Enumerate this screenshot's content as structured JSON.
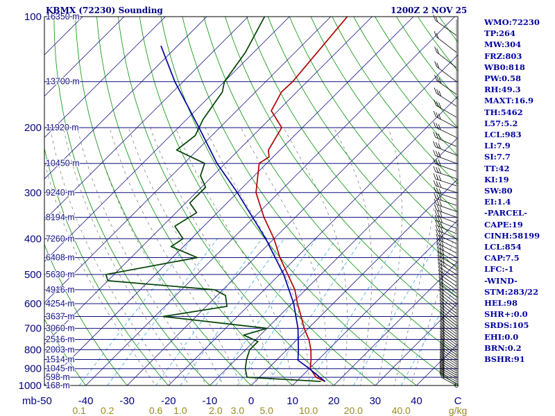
{
  "header": {
    "station": "KBMX (72230) Sounding",
    "time": "1200Z  2 NOV 25"
  },
  "indices": [
    "WMO:72230",
    "TP:264",
    "MW:304",
    "FRZ:803",
    "WB0:818",
    "PW:0.58",
    "RH:49.3",
    "MAXT:16.9",
    "TH:5462",
    "L57:5.2",
    "LCL:983",
    "LI:7.9",
    "SI:7.7",
    "TT:42",
    "KI:19",
    "SW:80",
    "EI:1.4",
    "-PARCEL-",
    "CAPE:19",
    "CINH:58199",
    "LCL:854",
    "CAP:7.5",
    "LFC:-1",
    "-WIND-",
    "STM:283/22",
    "HEL:98",
    "SHR+:0.0",
    "SRDS:105",
    "EHI:0.0",
    "BRN:0.2",
    "BSHR:91"
  ],
  "chart_data": {
    "type": "line",
    "chart_kind": "skew-T log-P thermodynamic diagram",
    "y_axis": {
      "quantity": "pressure",
      "unit_label": "mb",
      "scale": "log",
      "range": [
        1000,
        100
      ],
      "tick_labels": [
        "1000",
        "900",
        "800",
        "700",
        "600",
        "500",
        "400",
        "300",
        "200",
        "100"
      ]
    },
    "x_axis": {
      "quantity": "temperature",
      "unit_label": "C",
      "skewed": true,
      "range_at_1000mb": [
        -50,
        50
      ],
      "tick_labels": [
        "-50",
        "-40",
        "-30",
        "-20",
        "-10",
        "0",
        "10",
        "20",
        "30",
        "40"
      ]
    },
    "mixing_ratio_axis": {
      "unit_label": "g/kg",
      "tick_labels": [
        "0.1",
        "0.2",
        "0.6",
        "1.0",
        "2.0",
        "3.0",
        "5.0",
        "10.0",
        "20.0",
        "40.0"
      ],
      "tick_values": [
        0.1,
        0.2,
        0.6,
        1.0,
        2.0,
        3.0,
        5.0,
        10.0,
        20.0,
        40.0
      ]
    },
    "height_labels": [
      {
        "p": 1000,
        "text": "168 m"
      },
      {
        "p": 950,
        "text": "598 m"
      },
      {
        "p": 900,
        "text": "1045 m"
      },
      {
        "p": 850,
        "text": "1514 m"
      },
      {
        "p": 800,
        "text": "2003 m"
      },
      {
        "p": 750,
        "text": "2516 m"
      },
      {
        "p": 700,
        "text": "3060 m"
      },
      {
        "p": 650,
        "text": "3637 m"
      },
      {
        "p": 600,
        "text": "4254 m"
      },
      {
        "p": 550,
        "text": "4916 m"
      },
      {
        "p": 500,
        "text": "5630 m"
      },
      {
        "p": 450,
        "text": "6408 m"
      },
      {
        "p": 400,
        "text": "7260 m"
      },
      {
        "p": 350,
        "text": "8194 m"
      },
      {
        "p": 300,
        "text": "9240 m"
      },
      {
        "p": 250,
        "text": "10450 m"
      },
      {
        "p": 200,
        "text": "11920 m"
      },
      {
        "p": 150,
        "text": "13700 m"
      },
      {
        "p": 100,
        "text": "16350 m"
      }
    ],
    "series": [
      {
        "role": "temperature",
        "color": "#b00000",
        "points": [
          {
            "p": 975,
            "t": 16.9
          },
          {
            "p": 950,
            "t": 13.7
          },
          {
            "p": 925,
            "t": 12.0
          },
          {
            "p": 900,
            "t": 10.2
          },
          {
            "p": 850,
            "t": 8.2
          },
          {
            "p": 800,
            "t": 5.8
          },
          {
            "p": 750,
            "t": 2.8
          },
          {
            "p": 700,
            "t": -1.0
          },
          {
            "p": 650,
            "t": -4.6
          },
          {
            "p": 600,
            "t": -8.6
          },
          {
            "p": 550,
            "t": -12.6
          },
          {
            "p": 500,
            "t": -18.0
          },
          {
            "p": 450,
            "t": -24.0
          },
          {
            "p": 400,
            "t": -30.0
          },
          {
            "p": 350,
            "t": -37.6
          },
          {
            "p": 300,
            "t": -45.5
          },
          {
            "p": 250,
            "t": -51.8
          },
          {
            "p": 240,
            "t": -51.0
          },
          {
            "p": 230,
            "t": -52.8
          },
          {
            "p": 200,
            "t": -55.0
          },
          {
            "p": 180,
            "t": -61.6
          },
          {
            "p": 160,
            "t": -63.7
          },
          {
            "p": 150,
            "t": -63.5
          },
          {
            "p": 100,
            "t": -66.0
          }
        ]
      },
      {
        "role": "dewpoint",
        "color": "#004000",
        "points": [
          {
            "p": 975,
            "t": 15.9
          },
          {
            "p": 950,
            "t": -3.0
          },
          {
            "p": 900,
            "t": -5.5
          },
          {
            "p": 850,
            "t": -7.4
          },
          {
            "p": 800,
            "t": -9.0
          },
          {
            "p": 760,
            "t": -9.0
          },
          {
            "p": 730,
            "t": -14.0
          },
          {
            "p": 700,
            "t": -10.0
          },
          {
            "p": 650,
            "t": -38.0
          },
          {
            "p": 610,
            "t": -25.0
          },
          {
            "p": 570,
            "t": -28.0
          },
          {
            "p": 550,
            "t": -32.0
          },
          {
            "p": 520,
            "t": -60.0
          },
          {
            "p": 500,
            "t": -62.0
          },
          {
            "p": 450,
            "t": -44.0
          },
          {
            "p": 420,
            "t": -53.0
          },
          {
            "p": 400,
            "t": -52.0
          },
          {
            "p": 370,
            "t": -57.0
          },
          {
            "p": 340,
            "t": -55.0
          },
          {
            "p": 320,
            "t": -59.0
          },
          {
            "p": 290,
            "t": -59.0
          },
          {
            "p": 270,
            "t": -63.0
          },
          {
            "p": 250,
            "t": -65.0
          },
          {
            "p": 230,
            "t": -75.0
          },
          {
            "p": 210,
            "t": -74.0
          },
          {
            "p": 190,
            "t": -76.0
          },
          {
            "p": 160,
            "t": -78.0
          },
          {
            "p": 150,
            "t": -80.0
          },
          {
            "p": 125,
            "t": -82.0
          },
          {
            "p": 100,
            "t": -86.0
          }
        ]
      },
      {
        "role": "parcel",
        "color": "#0000a0",
        "points": [
          {
            "p": 975,
            "t": 16.9
          },
          {
            "p": 950,
            "t": 14.6
          },
          {
            "p": 900,
            "t": 10.0
          },
          {
            "p": 854,
            "t": 5.2
          },
          {
            "p": 800,
            "t": 2.8
          },
          {
            "p": 700,
            "t": -2.5
          },
          {
            "p": 600,
            "t": -9.5
          },
          {
            "p": 500,
            "t": -19.0
          },
          {
            "p": 400,
            "t": -32.0
          },
          {
            "p": 300,
            "t": -50.0
          },
          {
            "p": 250,
            "t": -62.0
          },
          {
            "p": 200,
            "t": -75.0
          },
          {
            "p": 150,
            "t": -92.0
          },
          {
            "p": 120,
            "t": -104.0
          }
        ]
      }
    ],
    "wind_barbs_present": true,
    "grid": true
  }
}
